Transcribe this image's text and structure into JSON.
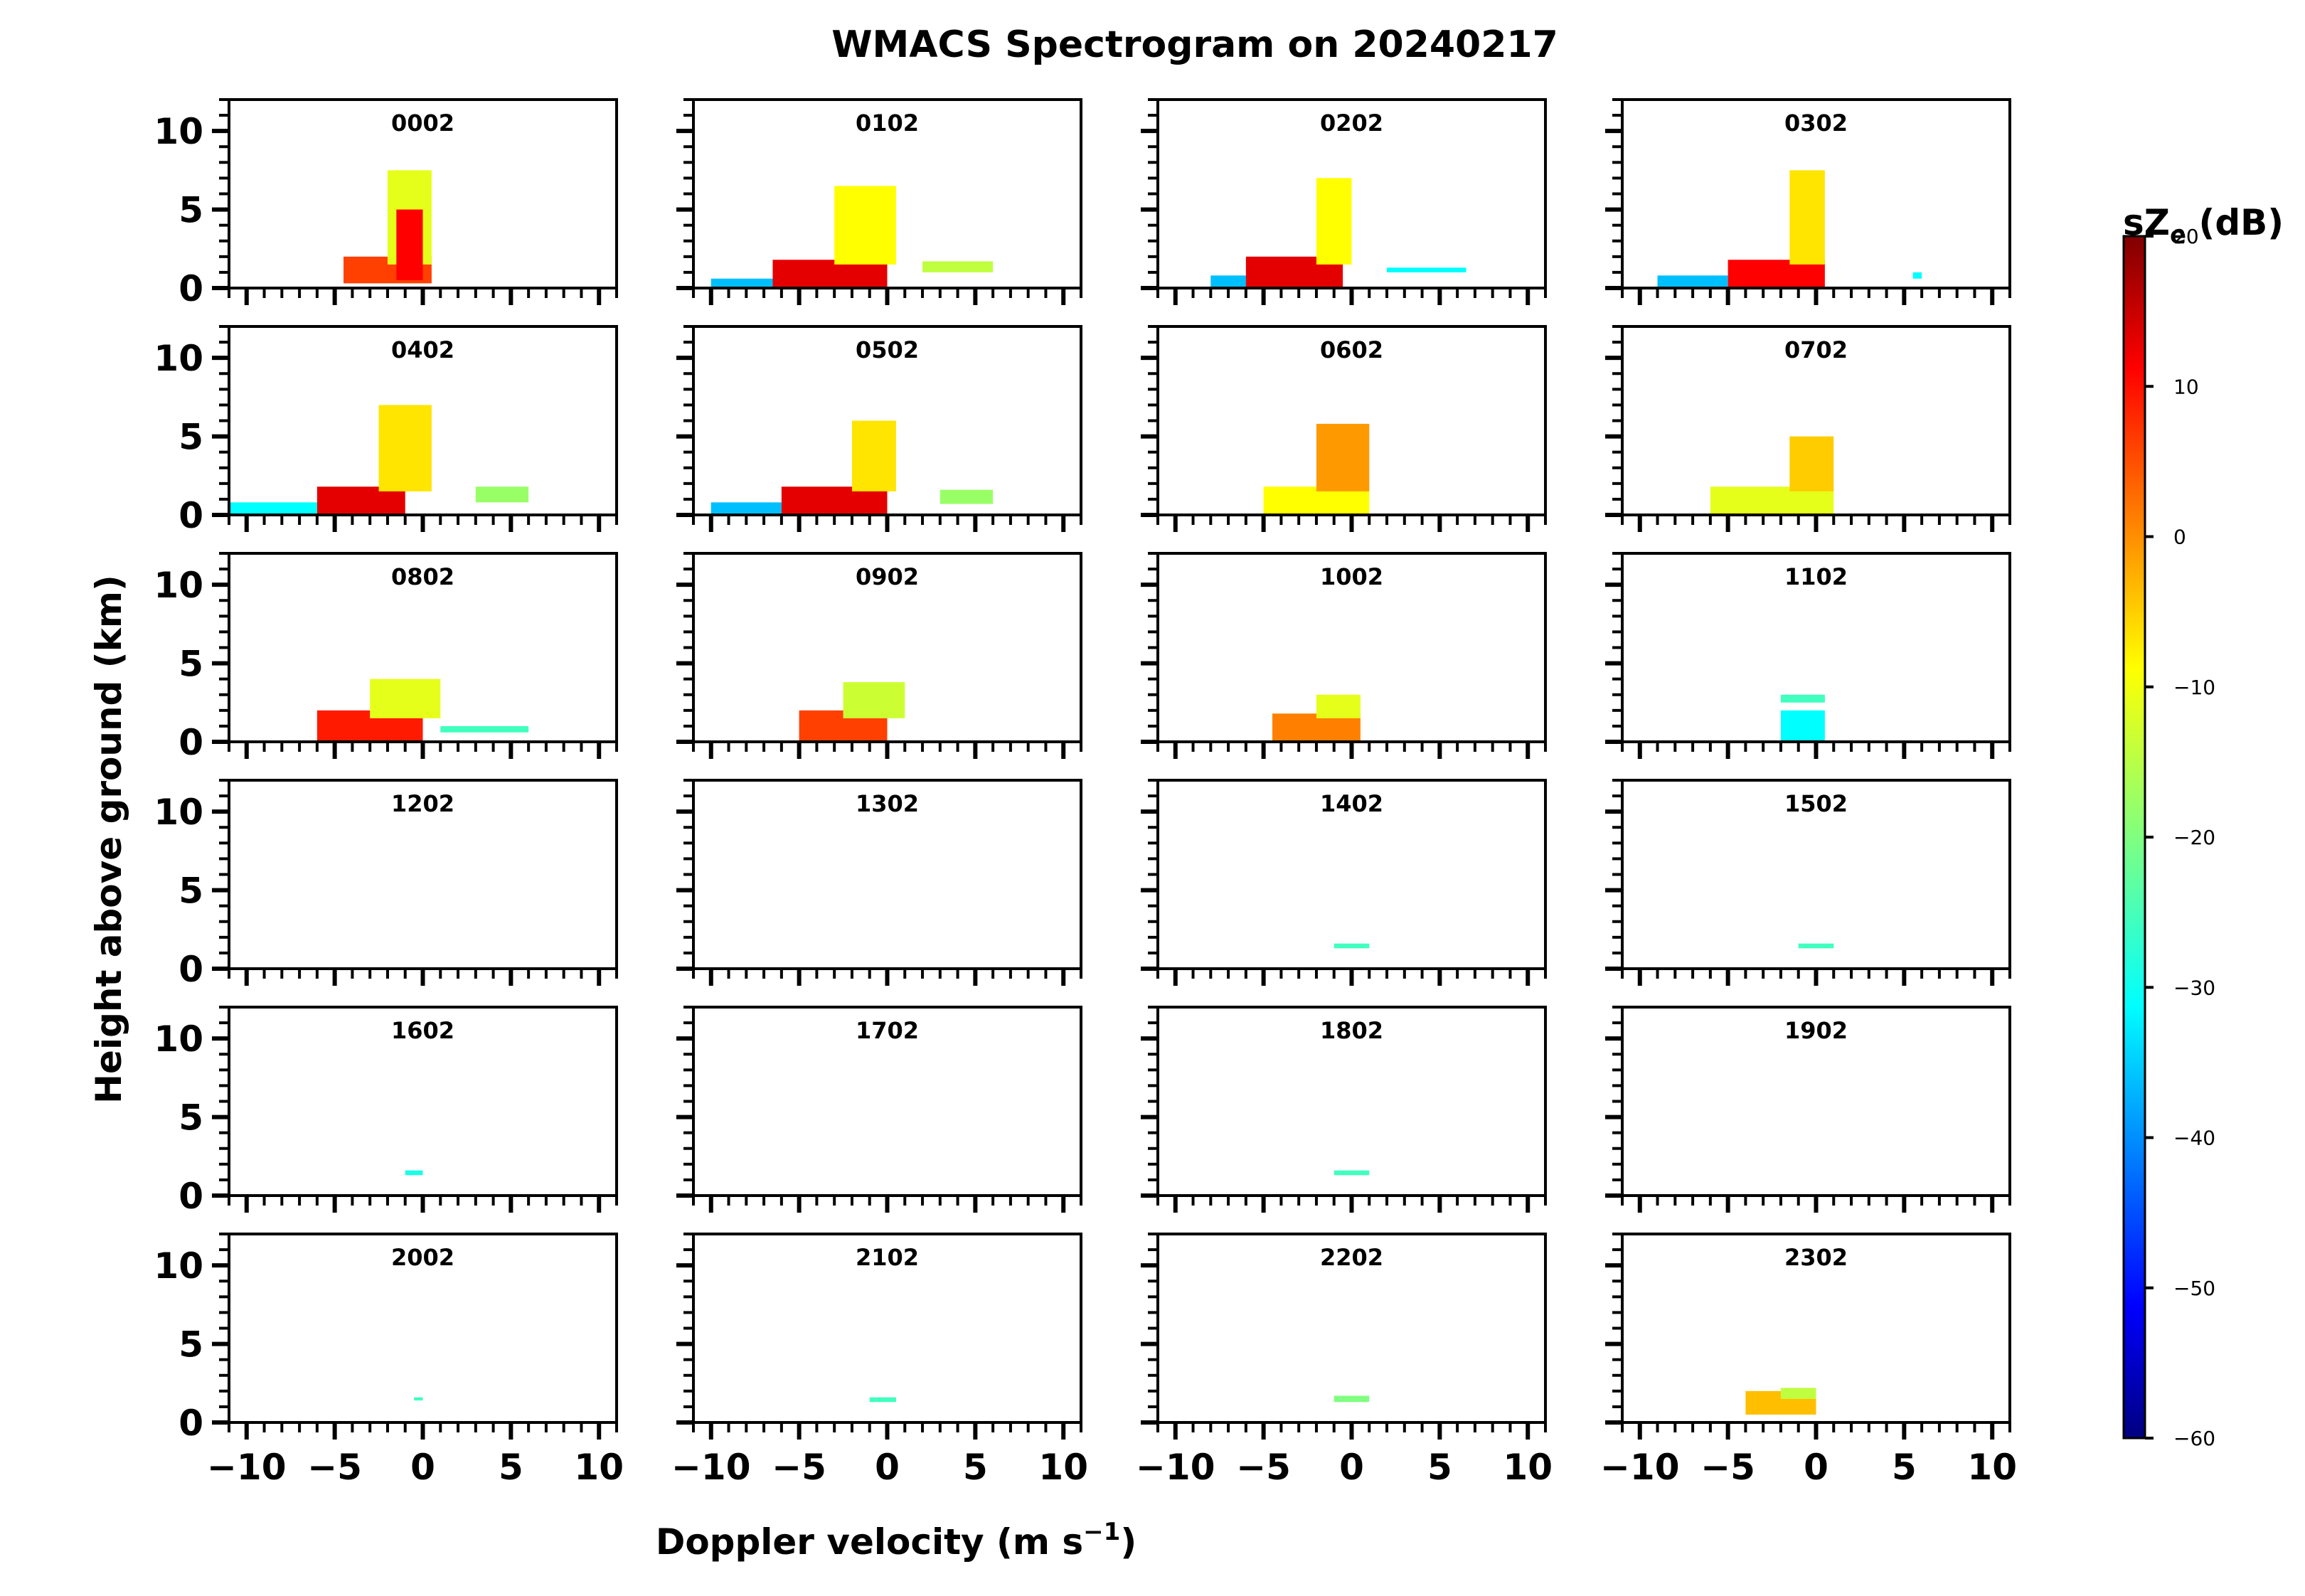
{
  "chart_data": {
    "type": "heatmap",
    "title": "WMACS Spectrogram on 20240217",
    "xlabel": "Doppler velocity (m s",
    "xlabel_sup": "−1",
    "xlabel_close": ")",
    "ylabel": "Height above ground (km)",
    "xlim": [
      -11,
      11
    ],
    "ylim": [
      0,
      12
    ],
    "xticks": [
      -10,
      -5,
      0,
      5,
      10
    ],
    "xtick_labels": [
      "−10",
      "−5",
      "0",
      "5",
      "10"
    ],
    "yticks": [
      0,
      5,
      10
    ],
    "ytick_labels": [
      "0",
      "5",
      "10"
    ],
    "colorbar": {
      "label": "sZ",
      "label_sub": "e",
      "label_unit": " (dB)",
      "min": -60,
      "max": 20,
      "colormap": "jet",
      "ticks": [
        -60,
        -50,
        -40,
        -30,
        -20,
        -10,
        0,
        10,
        20
      ],
      "tick_labels": [
        "−60",
        "−50",
        "−40",
        "−30",
        "−20",
        "−10",
        "0",
        "10",
        "20"
      ]
    },
    "panels": [
      {
        "time": "0002",
        "blobs": [
          {
            "x": [
              -4.5,
              0.5
            ],
            "y": [
              0.3,
              2
            ],
            "dbz": 5
          },
          {
            "x": [
              -2,
              0.5
            ],
            "y": [
              1.5,
              7.5
            ],
            "dbz": -12
          },
          {
            "x": [
              -1.5,
              0
            ],
            "y": [
              0.5,
              5
            ],
            "dbz": 10
          }
        ]
      },
      {
        "time": "0102",
        "blobs": [
          {
            "x": [
              -10,
              -6.5
            ],
            "y": [
              0,
              0.6
            ],
            "dbz": -35
          },
          {
            "x": [
              -6.5,
              0
            ],
            "y": [
              0,
              1.8
            ],
            "dbz": 12
          },
          {
            "x": [
              -3,
              0.5
            ],
            "y": [
              1.5,
              6.5
            ],
            "dbz": -10
          },
          {
            "x": [
              2,
              6
            ],
            "y": [
              1,
              1.7
            ],
            "dbz": -15
          }
        ]
      },
      {
        "time": "0202",
        "blobs": [
          {
            "x": [
              -8,
              -5
            ],
            "y": [
              0,
              0.8
            ],
            "dbz": -35
          },
          {
            "x": [
              -6,
              -0.5
            ],
            "y": [
              0,
              2
            ],
            "dbz": 12
          },
          {
            "x": [
              -2,
              0
            ],
            "y": [
              1.5,
              7
            ],
            "dbz": -10
          },
          {
            "x": [
              2,
              6.5
            ],
            "y": [
              1,
              1.3
            ],
            "dbz": -30
          }
        ]
      },
      {
        "time": "0302",
        "blobs": [
          {
            "x": [
              -9,
              -5
            ],
            "y": [
              0,
              0.8
            ],
            "dbz": -35
          },
          {
            "x": [
              -5,
              0.5
            ],
            "y": [
              0,
              1.8
            ],
            "dbz": 10
          },
          {
            "x": [
              -1.5,
              0.5
            ],
            "y": [
              1.5,
              7.5
            ],
            "dbz": -8
          },
          {
            "x": [
              5.5,
              6
            ],
            "y": [
              0.6,
              1
            ],
            "dbz": -30
          }
        ]
      },
      {
        "time": "0402",
        "blobs": [
          {
            "x": [
              -11,
              -6
            ],
            "y": [
              0,
              0.8
            ],
            "dbz": -30
          },
          {
            "x": [
              -6,
              -1
            ],
            "y": [
              0,
              1.8
            ],
            "dbz": 12
          },
          {
            "x": [
              -2.5,
              0.5
            ],
            "y": [
              1.5,
              7
            ],
            "dbz": -8
          },
          {
            "x": [
              3,
              6
            ],
            "y": [
              0.8,
              1.8
            ],
            "dbz": -18
          }
        ]
      },
      {
        "time": "0502",
        "blobs": [
          {
            "x": [
              -10,
              -6
            ],
            "y": [
              0,
              0.8
            ],
            "dbz": -35
          },
          {
            "x": [
              -6,
              0
            ],
            "y": [
              0,
              1.8
            ],
            "dbz": 12
          },
          {
            "x": [
              -2,
              0.5
            ],
            "y": [
              1.5,
              6
            ],
            "dbz": -8
          },
          {
            "x": [
              3,
              6
            ],
            "y": [
              0.7,
              1.6
            ],
            "dbz": -18
          }
        ]
      },
      {
        "time": "0602",
        "blobs": [
          {
            "x": [
              -5,
              1
            ],
            "y": [
              0,
              1.8
            ],
            "dbz": -10
          },
          {
            "x": [
              -2,
              1
            ],
            "y": [
              1.5,
              5.8
            ],
            "dbz": -2
          }
        ]
      },
      {
        "time": "0702",
        "blobs": [
          {
            "x": [
              -6,
              1
            ],
            "y": [
              0,
              1.8
            ],
            "dbz": -12
          },
          {
            "x": [
              -1.5,
              1
            ],
            "y": [
              1.5,
              5
            ],
            "dbz": -6
          }
        ]
      },
      {
        "time": "0802",
        "blobs": [
          {
            "x": [
              -6,
              0
            ],
            "y": [
              0,
              2
            ],
            "dbz": 8
          },
          {
            "x": [
              -3,
              1
            ],
            "y": [
              1.5,
              4
            ],
            "dbz": -12
          },
          {
            "x": [
              1,
              6
            ],
            "y": [
              0.6,
              1
            ],
            "dbz": -25
          }
        ]
      },
      {
        "time": "0902",
        "blobs": [
          {
            "x": [
              -5,
              0
            ],
            "y": [
              0,
              2
            ],
            "dbz": 5
          },
          {
            "x": [
              -2.5,
              1
            ],
            "y": [
              1.5,
              3.8
            ],
            "dbz": -14
          }
        ]
      },
      {
        "time": "1002",
        "blobs": [
          {
            "x": [
              -4.5,
              0.5
            ],
            "y": [
              0,
              1.8
            ],
            "dbz": 0
          },
          {
            "x": [
              -2,
              0.5
            ],
            "y": [
              1.5,
              3
            ],
            "dbz": -12
          }
        ]
      },
      {
        "time": "1102",
        "blobs": [
          {
            "x": [
              -2,
              0.5
            ],
            "y": [
              2.5,
              3
            ],
            "dbz": -25
          },
          {
            "x": [
              -2,
              0.5
            ],
            "y": [
              0,
              2
            ],
            "dbz": -30
          }
        ]
      },
      {
        "time": "1202",
        "blobs": []
      },
      {
        "time": "1302",
        "blobs": []
      },
      {
        "time": "1402",
        "blobs": [
          {
            "x": [
              -1,
              1
            ],
            "y": [
              1.3,
              1.6
            ],
            "dbz": -25
          }
        ]
      },
      {
        "time": "1502",
        "blobs": [
          {
            "x": [
              -1,
              1
            ],
            "y": [
              1.3,
              1.6
            ],
            "dbz": -25
          }
        ]
      },
      {
        "time": "1602",
        "blobs": [
          {
            "x": [
              -1,
              0
            ],
            "y": [
              1.3,
              1.6
            ],
            "dbz": -28
          }
        ]
      },
      {
        "time": "1702",
        "blobs": []
      },
      {
        "time": "1802",
        "blobs": [
          {
            "x": [
              -1,
              1
            ],
            "y": [
              1.3,
              1.6
            ],
            "dbz": -25
          }
        ]
      },
      {
        "time": "1902",
        "blobs": []
      },
      {
        "time": "2002",
        "blobs": [
          {
            "x": [
              -0.5,
              0
            ],
            "y": [
              1.4,
              1.6
            ],
            "dbz": -25
          }
        ]
      },
      {
        "time": "2102",
        "blobs": [
          {
            "x": [
              -1,
              0.5
            ],
            "y": [
              1.3,
              1.6
            ],
            "dbz": -25
          }
        ]
      },
      {
        "time": "2202",
        "blobs": [
          {
            "x": [
              -1,
              1
            ],
            "y": [
              1.3,
              1.7
            ],
            "dbz": -20
          }
        ]
      },
      {
        "time": "2302",
        "blobs": [
          {
            "x": [
              -4,
              0
            ],
            "y": [
              0.5,
              2
            ],
            "dbz": -5
          },
          {
            "x": [
              -2,
              0
            ],
            "y": [
              1.5,
              2.2
            ],
            "dbz": -15
          }
        ]
      }
    ]
  }
}
